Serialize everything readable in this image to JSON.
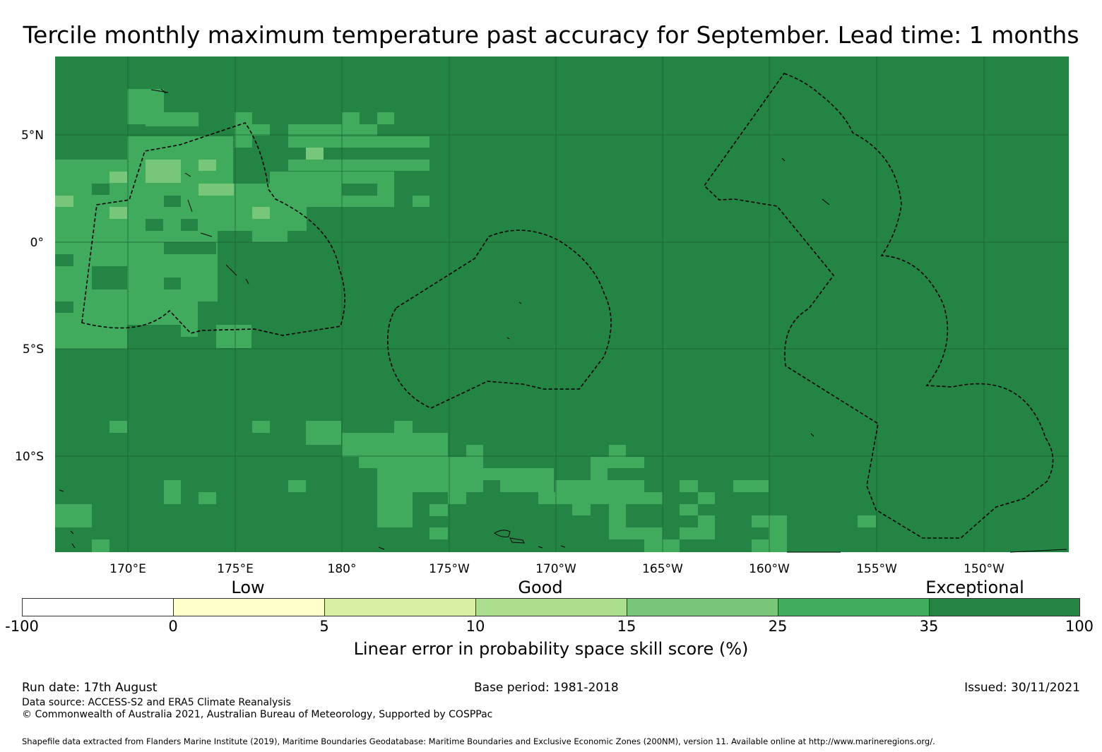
{
  "title": "Tercile monthly maximum temperature past accuracy for September. Lead time: 1 months",
  "map": {
    "background_color": "#238443",
    "lat_ticks": [
      "5°N",
      "0°",
      "5°S",
      "10°S"
    ],
    "lon_ticks": [
      "170°E",
      "175°E",
      "180°",
      "175°W",
      "170°W",
      "165°W",
      "160°W",
      "155°W",
      "150°W"
    ],
    "gridlines": true,
    "eez_boundaries": "dashed black",
    "coastlines": "black"
  },
  "colorbar": {
    "category_labels": [
      "Low",
      "Good",
      "Exceptional"
    ],
    "boundaries": [
      "-100",
      "0",
      "5",
      "10",
      "15",
      "25",
      "35",
      "100"
    ],
    "colors": [
      "#ffffff",
      "#ffffcc",
      "#d9f0a3",
      "#addd8e",
      "#78c679",
      "#41ab5d",
      "#238443"
    ],
    "title": "Linear error in probability space skill score (%)"
  },
  "footer": {
    "run_date": "Run date: 17th August",
    "base_period": "Base period: 1981-2018",
    "issued": "Issued: 30/11/2021",
    "data_source": "Data source: ACCESS-S2 and ERA5 Climate Reanalysis",
    "copyright": "© Commonwealth of Australia 2021, Australian Bureau of Meteorology, Supported by COSPPac",
    "shapefile": "Shapefile data extracted from Flanders Marine Institute (2019), Maritime Boundaries Geodatabase: Maritime Boundaries and Exclusive Economic Zones (200NM), version 11. Available online at http://www.marineregions.org/."
  }
}
